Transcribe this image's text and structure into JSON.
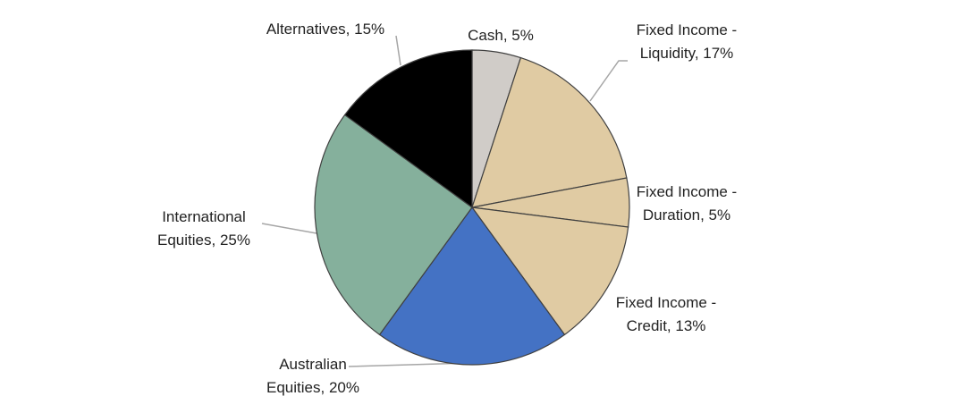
{
  "chart_data": {
    "type": "pie",
    "values": [
      5,
      17,
      5,
      13,
      20,
      25,
      15
    ],
    "value_labels": [
      "Cash, 5%",
      "Fixed Income - Liquidity, 17%",
      "Fixed Income - Duration, 5%",
      "Fixed Income - Credit, 13%",
      "Australian Equities, 20%",
      "International Equities, 25%",
      "Alternatives, 15%"
    ],
    "colors": [
      "#d0ccc8",
      "#e0cba3",
      "#e0cba3",
      "#e0cba3",
      "#4472c4",
      "#85b09c",
      "#000000"
    ]
  }
}
